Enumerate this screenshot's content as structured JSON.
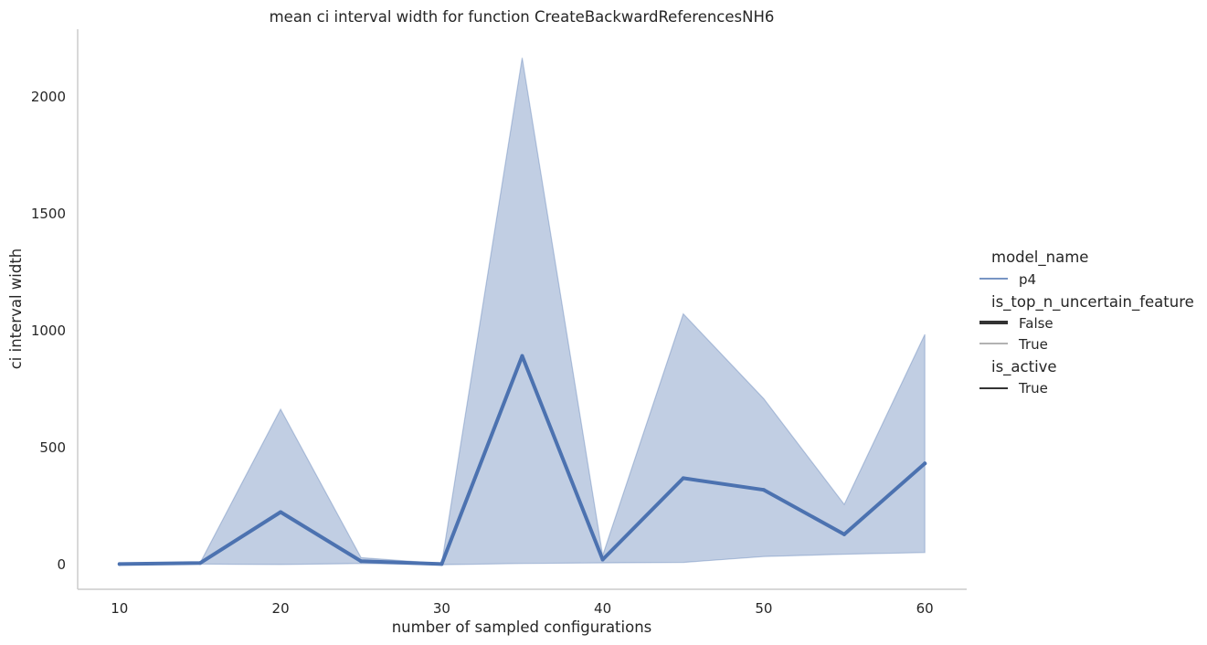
{
  "chart_data": {
    "type": "line",
    "title": "mean ci interval width for function CreateBackwardReferencesNH6",
    "xlabel": "number of sampled configurations",
    "ylabel": "ci interval width",
    "x": [
      10,
      15,
      20,
      25,
      30,
      35,
      40,
      45,
      50,
      55,
      60
    ],
    "xticks": [
      10,
      20,
      30,
      40,
      50,
      60
    ],
    "yticks": [
      0,
      500,
      1000,
      1500,
      2000
    ],
    "xlim": [
      7.4,
      62.6
    ],
    "ylim": [
      -105,
      2290
    ],
    "grid": false,
    "series": [
      {
        "name": "p4",
        "color": "#4c72b0",
        "values": [
          3,
          7,
          225,
          15,
          3,
          893,
          22,
          370,
          320,
          130,
          433
        ],
        "ci_low": [
          3,
          3,
          1,
          5,
          0,
          5,
          8,
          10,
          35,
          45,
          52
        ],
        "ci_high": [
          3,
          8,
          665,
          30,
          5,
          2168,
          40,
          1073,
          710,
          258,
          985
        ]
      }
    ],
    "legend": {
      "placement": "right",
      "groups": [
        {
          "title": "model_name",
          "entries": [
            {
              "label": "p4",
              "style": "colored-thin"
            }
          ]
        },
        {
          "title": "is_top_n_uncertain_feature",
          "entries": [
            {
              "label": "False",
              "style": "thick"
            },
            {
              "label": "True",
              "style": "thin"
            }
          ]
        },
        {
          "title": "is_active",
          "entries": [
            {
              "label": "True",
              "style": "medium"
            }
          ]
        }
      ]
    }
  }
}
